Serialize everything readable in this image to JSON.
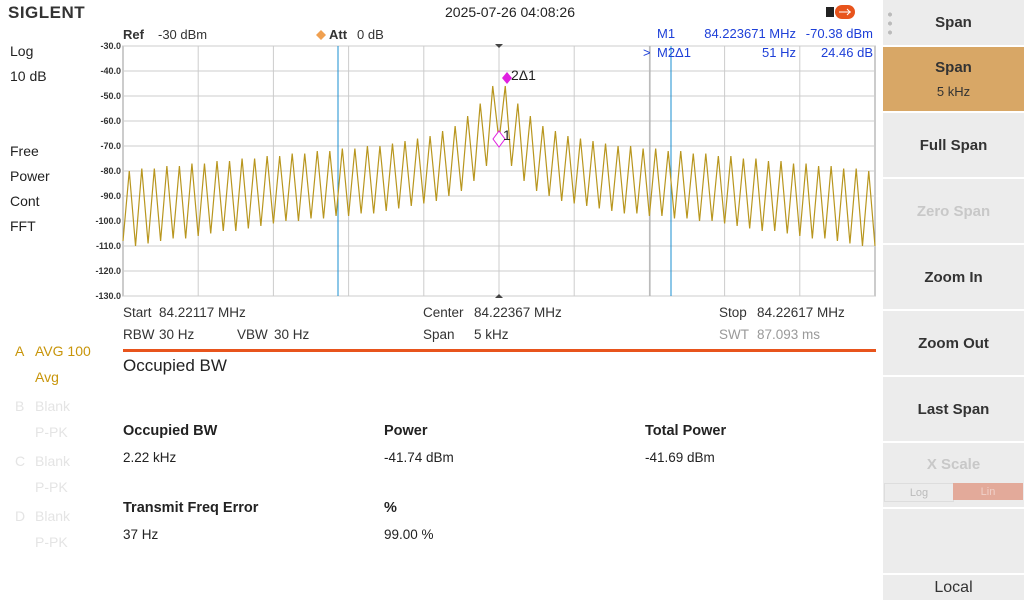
{
  "header": {
    "brand": "SIGLENT",
    "datetime": "2025-07-26 04:08:26"
  },
  "left_panel": {
    "scale_type": "Log",
    "scale_div": "10 dB",
    "status": [
      "Free",
      "Power",
      "Cont",
      "FFT"
    ],
    "traces": [
      {
        "letter": "A",
        "label": "AVG 100",
        "sub": "Avg"
      },
      {
        "letter": "B",
        "label": "Blank",
        "sub": "P-PK"
      },
      {
        "letter": "C",
        "label": "Blank",
        "sub": "P-PK"
      },
      {
        "letter": "D",
        "label": "Blank",
        "sub": "P-PK"
      }
    ]
  },
  "chart_data": {
    "type": "line",
    "ref_label": "Ref",
    "ref_value": "-30 dBm",
    "att_label": "Att",
    "att_value": "0 dB",
    "markers": [
      {
        "name": "M1",
        "freq": "84.223671 MHz",
        "level": "-70.38 dBm"
      },
      {
        "prefix": ">",
        "name": "M2Δ1",
        "freq": "51 Hz",
        "level": "24.46 dB"
      }
    ],
    "marker_tags": [
      "2Δ1",
      "1"
    ],
    "series": [
      {
        "color": "#b8961e",
        "values": [
          -108,
          -80,
          -110,
          -79,
          -109,
          -79,
          -108,
          -78,
          -107,
          -78,
          -107,
          -77,
          -106,
          -77,
          -105,
          -76,
          -104,
          -76,
          -104,
          -75,
          -103,
          -75,
          -102,
          -74,
          -101,
          -74,
          -100,
          -73,
          -100,
          -73,
          -99,
          -72,
          -99,
          -72,
          -98,
          -71,
          -98,
          -71,
          -97,
          -70,
          -97,
          -70,
          -96,
          -69,
          -95,
          -68,
          -94,
          -67,
          -93,
          -66,
          -92,
          -64,
          -90,
          -62,
          -88,
          -58,
          -84,
          -53,
          -78,
          -46,
          -68,
          -46,
          -78,
          -53,
          -84,
          -58,
          -88,
          -62,
          -90,
          -64,
          -92,
          -66,
          -93,
          -67,
          -94,
          -68,
          -95,
          -69,
          -96,
          -70,
          -97,
          -70,
          -97,
          -71,
          -98,
          -71,
          -98,
          -72,
          -99,
          -72,
          -99,
          -73,
          -100,
          -73,
          -100,
          -74,
          -101,
          -74,
          -102,
          -75,
          -103,
          -75,
          -104,
          -76,
          -104,
          -76,
          -105,
          -77,
          -106,
          -77,
          -107,
          -78,
          -107,
          -78,
          -108,
          -79,
          -109,
          -79,
          -110,
          -80,
          -110
        ]
      }
    ],
    "ylim": [
      -130,
      -30
    ],
    "yticks": [
      {
        "value": -30,
        "label": "-30.0"
      },
      {
        "value": -40,
        "label": "-40.0"
      },
      {
        "value": -50,
        "label": "-50.0"
      },
      {
        "value": -60,
        "label": "-60.0"
      },
      {
        "value": -70,
        "label": "-70.0"
      },
      {
        "value": -80,
        "label": "-80.0"
      },
      {
        "value": -90,
        "label": "-90.0"
      },
      {
        "value": -100,
        "label": "-100.0"
      },
      {
        "value": -110,
        "label": "-110.0"
      },
      {
        "value": -120,
        "label": "-120.0"
      },
      {
        "value": -130,
        "label": "-130.0"
      }
    ],
    "grid": true,
    "footer": [
      [
        "Start",
        "84.22117 MHz"
      ],
      [
        "Center",
        "84.22367 MHz"
      ],
      [
        "Stop",
        "84.22617 MHz"
      ],
      [
        "RBW",
        "30 Hz"
      ],
      [
        "VBW",
        "30 Hz"
      ],
      [
        "Span",
        "5 kHz"
      ],
      [
        "SWT",
        "87.093 ms"
      ]
    ]
  },
  "measurement": {
    "title": "Occupied BW",
    "cells": [
      [
        "Occupied BW",
        "2.22 kHz"
      ],
      [
        "Power",
        "-41.74 dBm"
      ],
      [
        "Total Power",
        "-41.69 dBm"
      ],
      [
        "Transmit Freq Error",
        "37 Hz"
      ],
      [
        "%",
        "99.00 %"
      ]
    ]
  },
  "softkeys": {
    "menu": "Span",
    "span": {
      "label": "Span",
      "value": "5 kHz"
    },
    "keys": [
      "Full Span",
      "Zero Span",
      "Zoom In",
      "Zoom Out",
      "Last Span",
      "X Scale"
    ],
    "toggle": [
      "Log",
      "Lin"
    ],
    "local": "Local"
  }
}
